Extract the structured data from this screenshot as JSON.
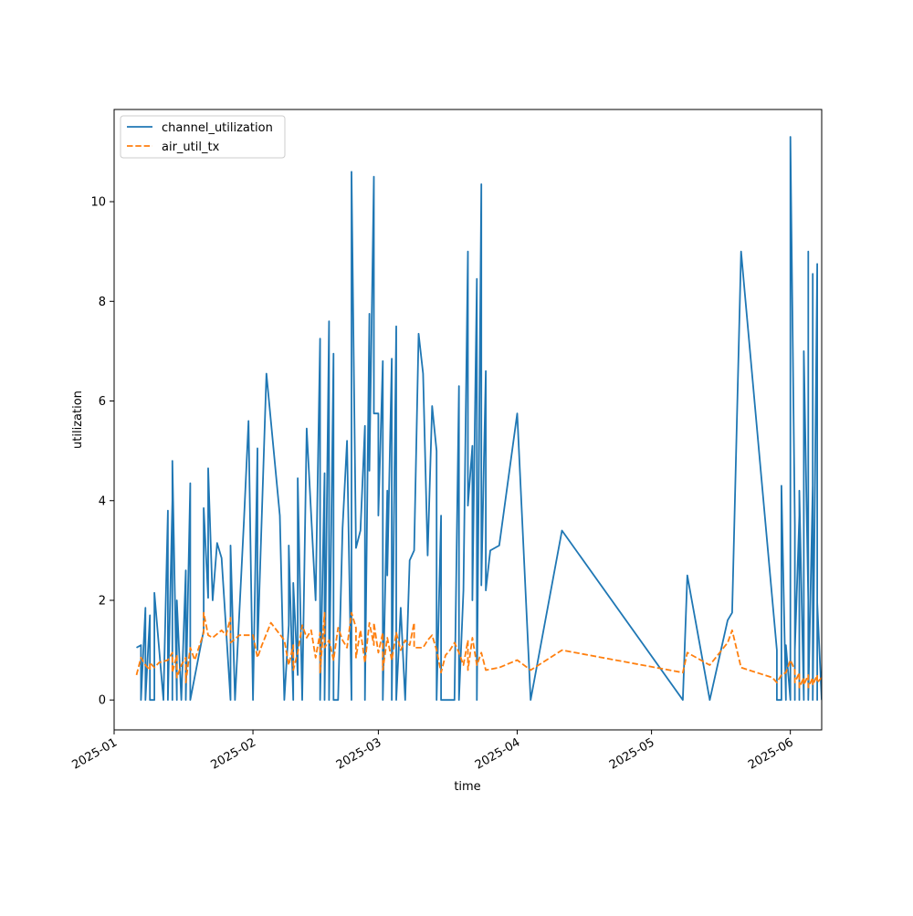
{
  "chart_data": {
    "type": "line",
    "title": "",
    "xlabel": "time",
    "ylabel": "utilization",
    "xlim": [
      "2025-01-01",
      "2025-06-08"
    ],
    "ylim": [
      -0.6,
      11.85
    ],
    "grid": false,
    "legend_position": "top-left",
    "x_ticks": [
      "2025-01-01",
      "2025-02-01",
      "2025-03-01",
      "2025-04-01",
      "2025-05-01",
      "2025-06-01"
    ],
    "x_tick_labels": [
      "2025-01",
      "2025-02",
      "2025-03",
      "2025-04",
      "2025-05",
      "2025-06"
    ],
    "y_ticks": [
      0,
      2,
      4,
      6,
      8,
      10
    ],
    "y_tick_labels": [
      "0",
      "2",
      "4",
      "6",
      "8",
      "10"
    ],
    "series": [
      {
        "name": "channel_utilization",
        "color": "#1f77b4",
        "dash": "solid",
        "points": [
          [
            "2025-01-06",
            1.05
          ],
          [
            "2025-01-07",
            1.1
          ],
          [
            "2025-01-07",
            0
          ],
          [
            "2025-01-08",
            1.85
          ],
          [
            "2025-01-08",
            0
          ],
          [
            "2025-01-09",
            1.7
          ],
          [
            "2025-01-09",
            0
          ],
          [
            "2025-01-10",
            0
          ],
          [
            "2025-01-10",
            2.15
          ],
          [
            "2025-01-12",
            0
          ],
          [
            "2025-01-13",
            3.8
          ],
          [
            "2025-01-13",
            0
          ],
          [
            "2025-01-14",
            4.0
          ],
          [
            "2025-01-14",
            0
          ],
          [
            "2025-01-14",
            4.8
          ],
          [
            "2025-01-15",
            0
          ],
          [
            "2025-01-15",
            2.0
          ],
          [
            "2025-01-16",
            0
          ],
          [
            "2025-01-17",
            2.6
          ],
          [
            "2025-01-17",
            0
          ],
          [
            "2025-01-18",
            4.35
          ],
          [
            "2025-01-18",
            0
          ],
          [
            "2025-01-21",
            1.4
          ],
          [
            "2025-01-21",
            3.85
          ],
          [
            "2025-01-22",
            2.05
          ],
          [
            "2025-01-22",
            4.65
          ],
          [
            "2025-01-23",
            2.0
          ],
          [
            "2025-01-24",
            3.15
          ],
          [
            "2025-01-25",
            2.85
          ],
          [
            "2025-01-27",
            0
          ],
          [
            "2025-01-27",
            3.1
          ],
          [
            "2025-01-28",
            0
          ],
          [
            "2025-01-30",
            3.6
          ],
          [
            "2025-01-31",
            5.6
          ],
          [
            "2025-02-01",
            0
          ],
          [
            "2025-02-02",
            5.05
          ],
          [
            "2025-02-02",
            1.0
          ],
          [
            "2025-02-04",
            6.55
          ],
          [
            "2025-02-07",
            3.7
          ],
          [
            "2025-02-08",
            0
          ],
          [
            "2025-02-09",
            1.5
          ],
          [
            "2025-02-09",
            3.1
          ],
          [
            "2025-02-10",
            0
          ],
          [
            "2025-02-10",
            2.35
          ],
          [
            "2025-02-11",
            0.5
          ],
          [
            "2025-02-11",
            4.45
          ],
          [
            "2025-02-12",
            0
          ],
          [
            "2025-02-13",
            5.45
          ],
          [
            "2025-02-15",
            2.0
          ],
          [
            "2025-02-16",
            7.25
          ],
          [
            "2025-02-16",
            0
          ],
          [
            "2025-02-17",
            4.55
          ],
          [
            "2025-02-17",
            0
          ],
          [
            "2025-02-18",
            7.6
          ],
          [
            "2025-02-18",
            0
          ],
          [
            "2025-02-19",
            6.95
          ],
          [
            "2025-02-19",
            0
          ],
          [
            "2025-02-20",
            0
          ],
          [
            "2025-02-21",
            3.45
          ],
          [
            "2025-02-22",
            5.2
          ],
          [
            "2025-02-23",
            0
          ],
          [
            "2025-02-23",
            10.6
          ],
          [
            "2025-02-24",
            3.05
          ],
          [
            "2025-02-25",
            3.4
          ],
          [
            "2025-02-26",
            5.5
          ],
          [
            "2025-02-26",
            0
          ],
          [
            "2025-02-27",
            7.75
          ],
          [
            "2025-02-27",
            4.6
          ],
          [
            "2025-02-28",
            10.5
          ],
          [
            "2025-02-28",
            5.75
          ],
          [
            "2025-03-01",
            5.75
          ],
          [
            "2025-03-01",
            3.7
          ],
          [
            "2025-03-02",
            6.8
          ],
          [
            "2025-03-02",
            0
          ],
          [
            "2025-03-03",
            4.2
          ],
          [
            "2025-03-03",
            2.5
          ],
          [
            "2025-03-04",
            6.85
          ],
          [
            "2025-03-04",
            0
          ],
          [
            "2025-03-05",
            7.5
          ],
          [
            "2025-03-05",
            0
          ],
          [
            "2025-03-06",
            1.85
          ],
          [
            "2025-03-07",
            0
          ],
          [
            "2025-03-08",
            2.8
          ],
          [
            "2025-03-09",
            3.0
          ],
          [
            "2025-03-10",
            7.35
          ],
          [
            "2025-03-11",
            6.55
          ],
          [
            "2025-03-12",
            2.9
          ],
          [
            "2025-03-13",
            5.9
          ],
          [
            "2025-03-14",
            5.0
          ],
          [
            "2025-03-14",
            0
          ],
          [
            "2025-03-15",
            3.7
          ],
          [
            "2025-03-15",
            0
          ],
          [
            "2025-03-16",
            0
          ],
          [
            "2025-03-18",
            0
          ],
          [
            "2025-03-19",
            6.3
          ],
          [
            "2025-03-19",
            0
          ],
          [
            "2025-03-20",
            2.2
          ],
          [
            "2025-03-21",
            9.0
          ],
          [
            "2025-03-21",
            3.9
          ],
          [
            "2025-03-22",
            5.1
          ],
          [
            "2025-03-22",
            2.0
          ],
          [
            "2025-03-23",
            8.45
          ],
          [
            "2025-03-23",
            0
          ],
          [
            "2025-03-24",
            10.35
          ],
          [
            "2025-03-24",
            2.3
          ],
          [
            "2025-03-25",
            6.6
          ],
          [
            "2025-03-25",
            2.2
          ],
          [
            "2025-03-26",
            3.0
          ],
          [
            "2025-03-28",
            3.1
          ],
          [
            "2025-04-01",
            5.75
          ],
          [
            "2025-04-04",
            0
          ],
          [
            "2025-04-11",
            3.4
          ],
          [
            "2025-05-08",
            0
          ],
          [
            "2025-05-09",
            2.5
          ],
          [
            "2025-05-14",
            0
          ],
          [
            "2025-05-18",
            1.6
          ],
          [
            "2025-05-19",
            1.75
          ],
          [
            "2025-05-21",
            9.0
          ],
          [
            "2025-05-29",
            1.0
          ],
          [
            "2025-05-29",
            0
          ],
          [
            "2025-05-30",
            0
          ],
          [
            "2025-05-30",
            4.3
          ],
          [
            "2025-05-31",
            0
          ],
          [
            "2025-05-31",
            1.1
          ],
          [
            "2025-06-01",
            0
          ],
          [
            "2025-06-01",
            11.3
          ],
          [
            "2025-06-02",
            3.5
          ],
          [
            "2025-06-02",
            0
          ],
          [
            "2025-06-02",
            1.0
          ],
          [
            "2025-06-03",
            3.7
          ],
          [
            "2025-06-03",
            0
          ],
          [
            "2025-06-03",
            4.2
          ],
          [
            "2025-06-04",
            0
          ],
          [
            "2025-06-04",
            3.25
          ],
          [
            "2025-06-04",
            1.75
          ],
          [
            "2025-06-04",
            7.0
          ],
          [
            "2025-06-05",
            2.0
          ],
          [
            "2025-06-05",
            0
          ],
          [
            "2025-06-05",
            9.0
          ],
          [
            "2025-06-05",
            0
          ],
          [
            "2025-06-06",
            4.3
          ],
          [
            "2025-06-06",
            2.4
          ],
          [
            "2025-06-06",
            8.55
          ],
          [
            "2025-06-06",
            0
          ],
          [
            "2025-06-07",
            8.75
          ],
          [
            "2025-06-07",
            0
          ],
          [
            "2025-06-07",
            1.95
          ],
          [
            "2025-06-08",
            0
          ]
        ]
      },
      {
        "name": "air_util_tx",
        "color": "#ff7f0e",
        "dash": "dashed",
        "points": [
          [
            "2025-01-06",
            0.5
          ],
          [
            "2025-01-07",
            0.85
          ],
          [
            "2025-01-08",
            0.7
          ],
          [
            "2025-01-09",
            0.6
          ],
          [
            "2025-01-09",
            0.75
          ],
          [
            "2025-01-10",
            0.65
          ],
          [
            "2025-01-11",
            0.75
          ],
          [
            "2025-01-13",
            0.8
          ],
          [
            "2025-01-14",
            0.95
          ],
          [
            "2025-01-14",
            0.55
          ],
          [
            "2025-01-15",
            0.9
          ],
          [
            "2025-01-15",
            0.45
          ],
          [
            "2025-01-16",
            0.7
          ],
          [
            "2025-01-17",
            0.85
          ],
          [
            "2025-01-17",
            0.35
          ],
          [
            "2025-01-18",
            1.05
          ],
          [
            "2025-01-19",
            0.8
          ],
          [
            "2025-01-21",
            1.35
          ],
          [
            "2025-01-21",
            1.75
          ],
          [
            "2025-01-22",
            1.3
          ],
          [
            "2025-01-23",
            1.25
          ],
          [
            "2025-01-25",
            1.4
          ],
          [
            "2025-01-26",
            1.3
          ],
          [
            "2025-01-27",
            1.65
          ],
          [
            "2025-01-27",
            1.15
          ],
          [
            "2025-01-29",
            1.3
          ],
          [
            "2025-02-01",
            1.3
          ],
          [
            "2025-02-02",
            0.85
          ],
          [
            "2025-02-03",
            1.1
          ],
          [
            "2025-02-05",
            1.55
          ],
          [
            "2025-02-08",
            1.2
          ],
          [
            "2025-02-09",
            0.7
          ],
          [
            "2025-02-10",
            1.1
          ],
          [
            "2025-02-10",
            0.6
          ],
          [
            "2025-02-11",
            0.95
          ],
          [
            "2025-02-12",
            1.5
          ],
          [
            "2025-02-13",
            1.25
          ],
          [
            "2025-02-14",
            1.4
          ],
          [
            "2025-02-15",
            0.85
          ],
          [
            "2025-02-16",
            1.35
          ],
          [
            "2025-02-16",
            0.55
          ],
          [
            "2025-02-17",
            1.75
          ],
          [
            "2025-02-17",
            1.05
          ],
          [
            "2025-02-18",
            1.2
          ],
          [
            "2025-02-19",
            0.8
          ],
          [
            "2025-02-20",
            1.45
          ],
          [
            "2025-02-21",
            1.2
          ],
          [
            "2025-02-22",
            1.05
          ],
          [
            "2025-02-23",
            1.75
          ],
          [
            "2025-02-24",
            1.45
          ],
          [
            "2025-02-24",
            0.85
          ],
          [
            "2025-02-25",
            1.4
          ],
          [
            "2025-02-26",
            0.75
          ],
          [
            "2025-02-27",
            1.55
          ],
          [
            "2025-02-28",
            1.1
          ],
          [
            "2025-02-28",
            1.55
          ],
          [
            "2025-03-01",
            0.95
          ],
          [
            "2025-03-02",
            1.35
          ],
          [
            "2025-03-02",
            0.6
          ],
          [
            "2025-03-03",
            1.25
          ],
          [
            "2025-03-04",
            0.8
          ],
          [
            "2025-03-05",
            1.35
          ],
          [
            "2025-03-06",
            1.0
          ],
          [
            "2025-03-07",
            1.2
          ],
          [
            "2025-03-08",
            1.1
          ],
          [
            "2025-03-09",
            1.55
          ],
          [
            "2025-03-09",
            1.05
          ],
          [
            "2025-03-11",
            1.05
          ],
          [
            "2025-03-12",
            1.2
          ],
          [
            "2025-03-13",
            1.3
          ],
          [
            "2025-03-14",
            1.0
          ],
          [
            "2025-03-15",
            0.55
          ],
          [
            "2025-03-16",
            0.9
          ],
          [
            "2025-03-17",
            1.0
          ],
          [
            "2025-03-18",
            1.15
          ],
          [
            "2025-03-19",
            0.95
          ],
          [
            "2025-03-20",
            0.7
          ],
          [
            "2025-03-21",
            1.2
          ],
          [
            "2025-03-21",
            0.6
          ],
          [
            "2025-03-22",
            1.25
          ],
          [
            "2025-03-23",
            0.7
          ],
          [
            "2025-03-24",
            0.95
          ],
          [
            "2025-03-25",
            0.6
          ],
          [
            "2025-03-28",
            0.65
          ],
          [
            "2025-04-01",
            0.8
          ],
          [
            "2025-04-04",
            0.6
          ],
          [
            "2025-04-11",
            1.0
          ],
          [
            "2025-05-08",
            0.55
          ],
          [
            "2025-05-09",
            0.95
          ],
          [
            "2025-05-14",
            0.7
          ],
          [
            "2025-05-18",
            1.15
          ],
          [
            "2025-05-19",
            1.4
          ],
          [
            "2025-05-21",
            0.65
          ],
          [
            "2025-05-28",
            0.45
          ],
          [
            "2025-05-29",
            0.35
          ],
          [
            "2025-05-30",
            0.5
          ],
          [
            "2025-05-31",
            0.55
          ],
          [
            "2025-06-01",
            0.8
          ],
          [
            "2025-06-02",
            0.6
          ],
          [
            "2025-06-02",
            0.35
          ],
          [
            "2025-06-03",
            0.55
          ],
          [
            "2025-06-03",
            0.25
          ],
          [
            "2025-06-04",
            0.45
          ],
          [
            "2025-06-04",
            0.3
          ],
          [
            "2025-06-05",
            0.5
          ],
          [
            "2025-06-05",
            0.25
          ],
          [
            "2025-06-06",
            0.45
          ],
          [
            "2025-06-06",
            0.3
          ],
          [
            "2025-06-07",
            0.5
          ],
          [
            "2025-06-07",
            0.35
          ],
          [
            "2025-06-08",
            0.45
          ]
        ]
      }
    ]
  }
}
